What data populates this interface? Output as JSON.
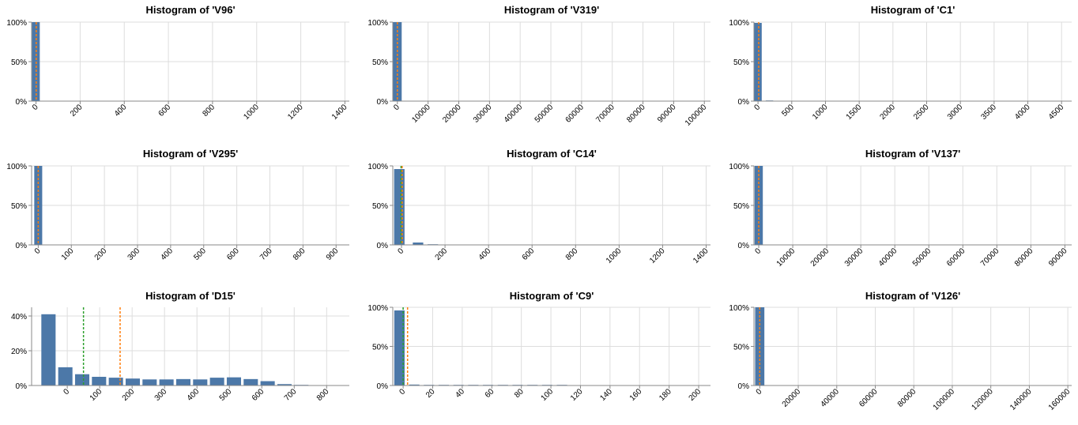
{
  "theme": {
    "bar_color": "#4c78a8",
    "grid_color": "#dddddd",
    "axis_color": "#888888",
    "mean_color": "#ff7f0e",
    "median_color": "#2ca02c"
  },
  "chart_data": [
    {
      "type": "bar",
      "title": "Histogram of 'V96'",
      "xlim": [
        -20,
        1420
      ],
      "ylim": [
        0,
        1
      ],
      "xticks": [
        0,
        200,
        400,
        600,
        800,
        1000,
        1200,
        1400
      ],
      "xtick_labels": [
        "0",
        "200",
        "400",
        "600",
        "800",
        "1000",
        "1200",
        "1400"
      ],
      "yticks": [
        0,
        0.5,
        1
      ],
      "ytick_labels": [
        "0%",
        "50%",
        "100%"
      ],
      "bin_width": 35,
      "bins": [
        {
          "x0": -18,
          "x1": 17,
          "value": 1.0
        }
      ],
      "mean_line": 1,
      "median_line": null
    },
    {
      "type": "bar",
      "title": "Histogram of 'V319'",
      "xlim": [
        -1500,
        102000
      ],
      "ylim": [
        0,
        1
      ],
      "xticks": [
        0,
        10000,
        20000,
        30000,
        40000,
        50000,
        60000,
        70000,
        80000,
        90000,
        100000
      ],
      "xtick_labels": [
        "0",
        "10000",
        "20000",
        "30000",
        "40000",
        "50000",
        "60000",
        "70000",
        "80000",
        "90000",
        "100000"
      ],
      "yticks": [
        0,
        0.5,
        1
      ],
      "ytick_labels": [
        "0%",
        "50%",
        "100%"
      ],
      "bins": [
        {
          "x0": -1400,
          "x1": 1400,
          "value": 1.0
        }
      ],
      "mean_line": 0,
      "median_line": null
    },
    {
      "type": "bar",
      "title": "Histogram of 'C1'",
      "xlim": [
        -60,
        4650
      ],
      "ylim": [
        0,
        1
      ],
      "xticks": [
        0,
        500,
        1000,
        1500,
        2000,
        2500,
        3000,
        3500,
        4000,
        4500
      ],
      "xtick_labels": [
        "0",
        "500",
        "1000",
        "1500",
        "2000",
        "2500",
        "3000",
        "3500",
        "4000",
        "4500"
      ],
      "yticks": [
        0,
        0.5,
        1
      ],
      "ytick_labels": [
        "0%",
        "50%",
        "100%"
      ],
      "bins": [
        {
          "x0": -55,
          "x1": 55,
          "value": 0.99
        },
        {
          "x0": 115,
          "x1": 225,
          "value": 0.005
        }
      ],
      "mean_line": 10,
      "median_line": null
    },
    {
      "type": "bar",
      "title": "Histogram of 'V295'",
      "xlim": [
        -20,
        940
      ],
      "ylim": [
        0,
        1
      ],
      "xticks": [
        0,
        100,
        200,
        300,
        400,
        500,
        600,
        700,
        800,
        900
      ],
      "xtick_labels": [
        "0",
        "100",
        "200",
        "300",
        "400",
        "500",
        "600",
        "700",
        "800",
        "900"
      ],
      "yticks": [
        0,
        0.5,
        1
      ],
      "ytick_labels": [
        "0%",
        "50%",
        "100%"
      ],
      "bins": [
        {
          "x0": -12,
          "x1": 12,
          "value": 1.0
        }
      ],
      "mean_line": 0,
      "median_line": null
    },
    {
      "type": "bar",
      "title": "Histogram of 'C14'",
      "xlim": [
        -40,
        1420
      ],
      "ylim": [
        0,
        1
      ],
      "xticks": [
        0,
        200,
        400,
        600,
        800,
        1000,
        1200,
        1400
      ],
      "xtick_labels": [
        "0",
        "200",
        "400",
        "600",
        "800",
        "1000",
        "1200",
        "1400"
      ],
      "yticks": [
        0,
        0.5,
        1
      ],
      "ytick_labels": [
        "0%",
        "50%",
        "100%"
      ],
      "bins": [
        {
          "x0": -34,
          "x1": 14,
          "value": 0.96
        },
        {
          "x0": 52,
          "x1": 100,
          "value": 0.03
        },
        {
          "x0": 120,
          "x1": 168,
          "value": 0.005
        }
      ],
      "mean_line": 3,
      "median_line": -2
    },
    {
      "type": "bar",
      "title": "Histogram of 'V137'",
      "xlim": [
        -1400,
        92000
      ],
      "ylim": [
        0,
        1
      ],
      "xticks": [
        0,
        10000,
        20000,
        30000,
        40000,
        50000,
        60000,
        70000,
        80000,
        90000
      ],
      "xtick_labels": [
        "0",
        "10000",
        "20000",
        "30000",
        "40000",
        "50000",
        "60000",
        "70000",
        "80000",
        "90000"
      ],
      "yticks": [
        0,
        0.5,
        1
      ],
      "ytick_labels": [
        "0%",
        "50%",
        "100%"
      ],
      "bins": [
        {
          "x0": -1200,
          "x1": 1200,
          "value": 1.0
        }
      ],
      "mean_line": 0,
      "median_line": null
    },
    {
      "type": "bar",
      "title": "Histogram of 'D15'",
      "xlim": [
        -110,
        870
      ],
      "ylim": [
        0,
        0.45
      ],
      "xticks": [
        0,
        100,
        200,
        300,
        400,
        500,
        600,
        700,
        800
      ],
      "xtick_labels": [
        "0",
        "100",
        "200",
        "300",
        "400",
        "500",
        "600",
        "700",
        "800"
      ],
      "yticks": [
        0,
        0.2,
        0.4
      ],
      "ytick_labels": [
        "0%",
        "20%",
        "40%"
      ],
      "bins": [
        {
          "x0": -80,
          "x1": -36,
          "value": 0.41
        },
        {
          "x0": -28,
          "x1": 16,
          "value": 0.105
        },
        {
          "x0": 24,
          "x1": 68,
          "value": 0.065
        },
        {
          "x0": 76,
          "x1": 120,
          "value": 0.05
        },
        {
          "x0": 128,
          "x1": 172,
          "value": 0.045
        },
        {
          "x0": 180,
          "x1": 224,
          "value": 0.04
        },
        {
          "x0": 232,
          "x1": 276,
          "value": 0.035
        },
        {
          "x0": 284,
          "x1": 328,
          "value": 0.035
        },
        {
          "x0": 336,
          "x1": 380,
          "value": 0.037
        },
        {
          "x0": 388,
          "x1": 432,
          "value": 0.035
        },
        {
          "x0": 440,
          "x1": 484,
          "value": 0.045
        },
        {
          "x0": 492,
          "x1": 536,
          "value": 0.047
        },
        {
          "x0": 544,
          "x1": 588,
          "value": 0.037
        },
        {
          "x0": 596,
          "x1": 640,
          "value": 0.025
        },
        {
          "x0": 648,
          "x1": 692,
          "value": 0.008
        },
        {
          "x0": 700,
          "x1": 744,
          "value": 0.002
        }
      ],
      "mean_line": 163,
      "median_line": 50
    },
    {
      "type": "bar",
      "title": "Histogram of 'C9'",
      "xlim": [
        -7,
        208
      ],
      "ylim": [
        0,
        1
      ],
      "xticks": [
        0,
        20,
        40,
        60,
        80,
        100,
        120,
        140,
        160,
        180,
        200
      ],
      "xtick_labels": [
        "0",
        "20",
        "40",
        "60",
        "80",
        "100",
        "120",
        "140",
        "160",
        "180",
        "200"
      ],
      "yticks": [
        0,
        0.5,
        1
      ],
      "ytick_labels": [
        "0%",
        "50%",
        "100%"
      ],
      "bins": [
        {
          "x0": -6,
          "x1": 1,
          "value": 0.96
        },
        {
          "x0": 4,
          "x1": 11,
          "value": 0.012
        },
        {
          "x0": 14,
          "x1": 21,
          "value": 0.005
        },
        {
          "x0": 24,
          "x1": 31,
          "value": 0.003
        },
        {
          "x0": 34,
          "x1": 41,
          "value": 0.003
        },
        {
          "x0": 44,
          "x1": 51,
          "value": 0.003
        },
        {
          "x0": 54,
          "x1": 61,
          "value": 0.004
        },
        {
          "x0": 64,
          "x1": 71,
          "value": 0.004
        },
        {
          "x0": 74,
          "x1": 81,
          "value": 0.004
        },
        {
          "x0": 84,
          "x1": 91,
          "value": 0.003
        },
        {
          "x0": 94,
          "x1": 101,
          "value": 0.002
        },
        {
          "x0": 104,
          "x1": 111,
          "value": 0.002
        }
      ],
      "mean_line": 3,
      "median_line": 0
    },
    {
      "type": "bar",
      "title": "Histogram of 'V126'",
      "xlim": [
        -3000,
        162000
      ],
      "ylim": [
        0,
        1
      ],
      "xticks": [
        0,
        20000,
        40000,
        60000,
        80000,
        100000,
        120000,
        140000,
        160000
      ],
      "xtick_labels": [
        "0",
        "20000",
        "40000",
        "60000",
        "80000",
        "100000",
        "120000",
        "140000",
        "160000"
      ],
      "yticks": [
        0,
        0.5,
        1
      ],
      "ytick_labels": [
        "0%",
        "50%",
        "100%"
      ],
      "bins": [
        {
          "x0": -2400,
          "x1": 2400,
          "value": 1.0
        }
      ],
      "mean_line": 0,
      "median_line": null
    }
  ]
}
